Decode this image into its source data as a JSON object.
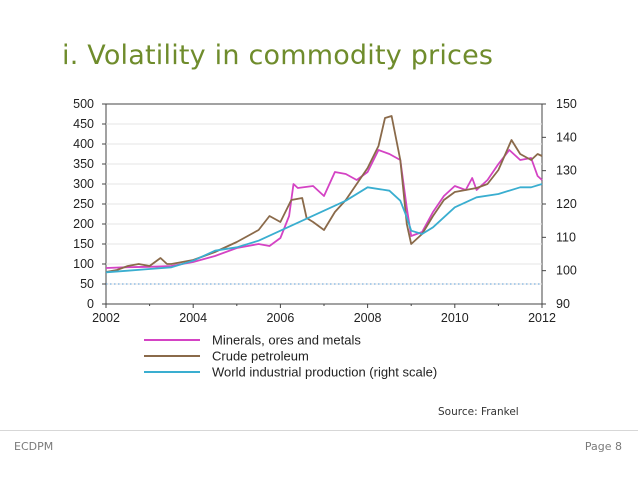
{
  "slide": {
    "title": "i. Volatility in commodity prices",
    "source": "Source: Frankel",
    "footer_left": "ECDPM",
    "footer_right": "Page 8"
  },
  "colors": {
    "title": "#6f8c2c",
    "minerals": "#d443c4",
    "crude": "#8a6a4a",
    "industrial": "#3aaed0",
    "reference": "#5a9bd4"
  },
  "chart_data": {
    "type": "line",
    "title": "",
    "xlim": [
      2002,
      2012
    ],
    "x_ticks": [
      "2002",
      "2004",
      "2006",
      "2008",
      "2010",
      "2012"
    ],
    "ylim_left": [
      0,
      500
    ],
    "y_ticks_left": [
      "0",
      "50",
      "100",
      "150",
      "200",
      "250",
      "300",
      "350",
      "400",
      "450",
      "500"
    ],
    "ylim_right": [
      90,
      150
    ],
    "y_ticks_right": [
      "90",
      "100",
      "110",
      "120",
      "130",
      "140",
      "150"
    ],
    "reference_line": 50,
    "legend_position": "bottom",
    "series": [
      {
        "name": "Minerals, ores and metals",
        "axis": "left",
        "color": "#d443c4",
        "points": [
          [
            2002.0,
            90
          ],
          [
            2002.5,
            92
          ],
          [
            2003.0,
            93
          ],
          [
            2003.5,
            95
          ],
          [
            2004.0,
            105
          ],
          [
            2004.5,
            120
          ],
          [
            2005.0,
            140
          ],
          [
            2005.5,
            150
          ],
          [
            2005.75,
            145
          ],
          [
            2006.0,
            165
          ],
          [
            2006.2,
            220
          ],
          [
            2006.3,
            300
          ],
          [
            2006.4,
            290
          ],
          [
            2006.75,
            295
          ],
          [
            2007.0,
            270
          ],
          [
            2007.25,
            330
          ],
          [
            2007.5,
            325
          ],
          [
            2007.75,
            310
          ],
          [
            2008.0,
            330
          ],
          [
            2008.25,
            385
          ],
          [
            2008.5,
            375
          ],
          [
            2008.75,
            360
          ],
          [
            2008.9,
            240
          ],
          [
            2009.0,
            170
          ],
          [
            2009.25,
            180
          ],
          [
            2009.5,
            230
          ],
          [
            2009.75,
            270
          ],
          [
            2010.0,
            295
          ],
          [
            2010.25,
            285
          ],
          [
            2010.4,
            315
          ],
          [
            2010.5,
            285
          ],
          [
            2010.75,
            310
          ],
          [
            2011.0,
            350
          ],
          [
            2011.25,
            385
          ],
          [
            2011.5,
            360
          ],
          [
            2011.75,
            365
          ],
          [
            2011.9,
            320
          ],
          [
            2012.0,
            310
          ]
        ]
      },
      {
        "name": "Crude petroleum",
        "axis": "left",
        "color": "#8a6a4a",
        "points": [
          [
            2002.0,
            80
          ],
          [
            2002.25,
            85
          ],
          [
            2002.5,
            95
          ],
          [
            2002.75,
            100
          ],
          [
            2003.0,
            95
          ],
          [
            2003.25,
            115
          ],
          [
            2003.4,
            100
          ],
          [
            2003.5,
            100
          ],
          [
            2004.0,
            110
          ],
          [
            2004.5,
            130
          ],
          [
            2005.0,
            155
          ],
          [
            2005.5,
            185
          ],
          [
            2005.75,
            220
          ],
          [
            2006.0,
            205
          ],
          [
            2006.25,
            260
          ],
          [
            2006.5,
            265
          ],
          [
            2006.6,
            215
          ],
          [
            2006.75,
            205
          ],
          [
            2007.0,
            185
          ],
          [
            2007.25,
            230
          ],
          [
            2007.5,
            260
          ],
          [
            2007.75,
            300
          ],
          [
            2008.0,
            340
          ],
          [
            2008.25,
            395
          ],
          [
            2008.4,
            465
          ],
          [
            2008.55,
            470
          ],
          [
            2008.75,
            360
          ],
          [
            2008.9,
            200
          ],
          [
            2009.0,
            150
          ],
          [
            2009.25,
            175
          ],
          [
            2009.5,
            220
          ],
          [
            2009.75,
            260
          ],
          [
            2010.0,
            280
          ],
          [
            2010.5,
            290
          ],
          [
            2010.75,
            300
          ],
          [
            2011.0,
            335
          ],
          [
            2011.3,
            410
          ],
          [
            2011.5,
            375
          ],
          [
            2011.75,
            360
          ],
          [
            2011.9,
            375
          ],
          [
            2012.0,
            370
          ]
        ]
      },
      {
        "name": "World industrial production (right scale)",
        "axis": "right",
        "color": "#3aaed0",
        "points": [
          [
            2002.0,
            99.5
          ],
          [
            2002.5,
            100
          ],
          [
            2003.0,
            100.5
          ],
          [
            2003.5,
            101
          ],
          [
            2004.0,
            103
          ],
          [
            2004.5,
            106
          ],
          [
            2005.0,
            107
          ],
          [
            2005.5,
            109
          ],
          [
            2006.0,
            112
          ],
          [
            2006.5,
            115
          ],
          [
            2007.0,
            118
          ],
          [
            2007.5,
            121
          ],
          [
            2008.0,
            125
          ],
          [
            2008.5,
            124
          ],
          [
            2008.75,
            121
          ],
          [
            2008.9,
            116
          ],
          [
            2009.0,
            112
          ],
          [
            2009.25,
            111
          ],
          [
            2009.5,
            113
          ],
          [
            2009.75,
            116
          ],
          [
            2010.0,
            119
          ],
          [
            2010.5,
            122
          ],
          [
            2011.0,
            123
          ],
          [
            2011.5,
            125
          ],
          [
            2011.75,
            125
          ],
          [
            2012.0,
            126
          ]
        ]
      }
    ]
  }
}
